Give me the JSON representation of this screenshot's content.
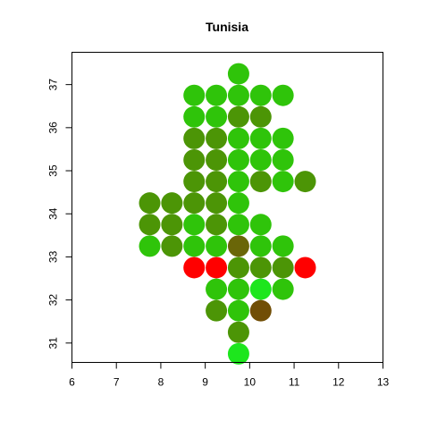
{
  "chart_data": {
    "type": "scatter",
    "title": "Tunisia",
    "xlabel": "",
    "ylabel": "",
    "xlim": [
      6,
      13
    ],
    "ylim": [
      30.55,
      37.75
    ],
    "x_ticks": [
      6,
      7,
      8,
      9,
      10,
      11,
      12,
      13
    ],
    "y_ticks": [
      31,
      32,
      33,
      34,
      35,
      36,
      37
    ],
    "grid": false,
    "legend": "none",
    "colors": {
      "bright_green": "#2fc40a",
      "dark_green": "#4c9506",
      "lime": "#1de61d",
      "olive": "#6a6608",
      "brown": "#714e06",
      "red": "#ff0000"
    },
    "points": [
      {
        "x": 9.75,
        "y": 37.25,
        "color": "bright_green"
      },
      {
        "x": 8.75,
        "y": 36.75,
        "color": "bright_green"
      },
      {
        "x": 9.25,
        "y": 36.75,
        "color": "bright_green"
      },
      {
        "x": 9.75,
        "y": 36.75,
        "color": "bright_green"
      },
      {
        "x": 10.25,
        "y": 36.75,
        "color": "bright_green"
      },
      {
        "x": 10.75,
        "y": 36.75,
        "color": "bright_green"
      },
      {
        "x": 8.75,
        "y": 36.25,
        "color": "bright_green"
      },
      {
        "x": 9.25,
        "y": 36.25,
        "color": "bright_green"
      },
      {
        "x": 9.75,
        "y": 36.25,
        "color": "dark_green"
      },
      {
        "x": 10.25,
        "y": 36.25,
        "color": "dark_green"
      },
      {
        "x": 8.75,
        "y": 35.75,
        "color": "dark_green"
      },
      {
        "x": 9.25,
        "y": 35.75,
        "color": "dark_green"
      },
      {
        "x": 9.75,
        "y": 35.75,
        "color": "bright_green"
      },
      {
        "x": 10.25,
        "y": 35.75,
        "color": "bright_green"
      },
      {
        "x": 10.75,
        "y": 35.75,
        "color": "bright_green"
      },
      {
        "x": 8.75,
        "y": 35.25,
        "color": "dark_green"
      },
      {
        "x": 9.25,
        "y": 35.25,
        "color": "dark_green"
      },
      {
        "x": 9.75,
        "y": 35.25,
        "color": "bright_green"
      },
      {
        "x": 10.25,
        "y": 35.25,
        "color": "bright_green"
      },
      {
        "x": 10.75,
        "y": 35.25,
        "color": "bright_green"
      },
      {
        "x": 8.75,
        "y": 34.75,
        "color": "dark_green"
      },
      {
        "x": 9.25,
        "y": 34.75,
        "color": "dark_green"
      },
      {
        "x": 9.75,
        "y": 34.75,
        "color": "bright_green"
      },
      {
        "x": 10.25,
        "y": 34.75,
        "color": "dark_green"
      },
      {
        "x": 10.75,
        "y": 34.75,
        "color": "bright_green"
      },
      {
        "x": 11.25,
        "y": 34.75,
        "color": "dark_green"
      },
      {
        "x": 7.75,
        "y": 34.25,
        "color": "dark_green"
      },
      {
        "x": 8.25,
        "y": 34.25,
        "color": "dark_green"
      },
      {
        "x": 8.75,
        "y": 34.25,
        "color": "dark_green"
      },
      {
        "x": 9.25,
        "y": 34.25,
        "color": "dark_green"
      },
      {
        "x": 9.75,
        "y": 34.25,
        "color": "bright_green"
      },
      {
        "x": 7.75,
        "y": 33.75,
        "color": "dark_green"
      },
      {
        "x": 8.25,
        "y": 33.75,
        "color": "dark_green"
      },
      {
        "x": 8.75,
        "y": 33.75,
        "color": "bright_green"
      },
      {
        "x": 9.25,
        "y": 33.75,
        "color": "dark_green"
      },
      {
        "x": 9.75,
        "y": 33.75,
        "color": "bright_green"
      },
      {
        "x": 10.25,
        "y": 33.75,
        "color": "bright_green"
      },
      {
        "x": 7.75,
        "y": 33.25,
        "color": "bright_green"
      },
      {
        "x": 8.25,
        "y": 33.25,
        "color": "dark_green"
      },
      {
        "x": 8.75,
        "y": 33.25,
        "color": "bright_green"
      },
      {
        "x": 9.25,
        "y": 33.25,
        "color": "bright_green"
      },
      {
        "x": 9.75,
        "y": 33.25,
        "color": "olive"
      },
      {
        "x": 10.25,
        "y": 33.25,
        "color": "bright_green"
      },
      {
        "x": 10.75,
        "y": 33.25,
        "color": "bright_green"
      },
      {
        "x": 8.75,
        "y": 32.75,
        "color": "red"
      },
      {
        "x": 9.25,
        "y": 32.75,
        "color": "red"
      },
      {
        "x": 9.75,
        "y": 32.75,
        "color": "dark_green"
      },
      {
        "x": 10.25,
        "y": 32.75,
        "color": "dark_green"
      },
      {
        "x": 10.75,
        "y": 32.75,
        "color": "dark_green"
      },
      {
        "x": 11.25,
        "y": 32.75,
        "color": "red"
      },
      {
        "x": 9.25,
        "y": 32.25,
        "color": "bright_green"
      },
      {
        "x": 9.75,
        "y": 32.25,
        "color": "bright_green"
      },
      {
        "x": 10.25,
        "y": 32.25,
        "color": "lime"
      },
      {
        "x": 10.75,
        "y": 32.25,
        "color": "bright_green"
      },
      {
        "x": 9.25,
        "y": 31.75,
        "color": "dark_green"
      },
      {
        "x": 9.75,
        "y": 31.75,
        "color": "bright_green"
      },
      {
        "x": 10.25,
        "y": 31.75,
        "color": "brown"
      },
      {
        "x": 9.75,
        "y": 31.25,
        "color": "dark_green"
      },
      {
        "x": 9.75,
        "y": 30.75,
        "color": "lime"
      }
    ]
  }
}
